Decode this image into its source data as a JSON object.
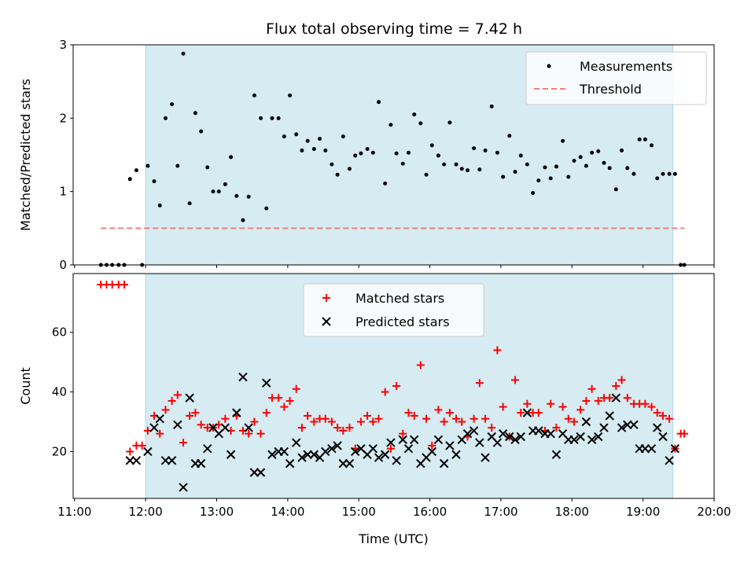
{
  "figure": {
    "title": "Flux total observing time = 7.42 h",
    "xlabel": "Time (UTC)"
  },
  "colors": {
    "shade": "#add8e6",
    "threshold": "#f08080",
    "matched": "#ff0000",
    "predicted": "#000000",
    "measurements": "#000000"
  },
  "chart_data": [
    {
      "type": "scatter",
      "panel": "top",
      "ylabel": "Matched/Predicted stars",
      "ylim": [
        0,
        3
      ],
      "yticks": [
        0,
        1,
        2,
        3
      ],
      "xlim": [
        10.98,
        20.0
      ],
      "xticks": [
        11,
        12,
        13,
        14,
        15,
        16,
        17,
        18,
        19,
        20
      ],
      "xticklabels": [
        "11:00",
        "12:00",
        "13:00",
        "14:00",
        "15:00",
        "16:00",
        "17:00",
        "18:00",
        "19:00",
        "20:00"
      ],
      "legend_position": "top-right",
      "shaded_span": [
        12.0,
        19.42
      ],
      "threshold": {
        "name": "Threshold",
        "y": 0.5,
        "x": [
          11.37,
          19.58
        ],
        "style": "dashed"
      },
      "series": [
        {
          "name": "Measurements",
          "x": [
            11.37,
            11.45,
            11.53,
            11.62,
            11.7,
            11.78,
            11.87,
            11.95,
            12.03,
            12.12,
            12.2,
            12.28,
            12.37,
            12.45,
            12.53,
            12.62,
            12.7,
            12.78,
            12.87,
            12.95,
            13.03,
            13.12,
            13.2,
            13.28,
            13.37,
            13.45,
            13.53,
            13.62,
            13.7,
            13.78,
            13.87,
            13.95,
            14.03,
            14.12,
            14.2,
            14.28,
            14.37,
            14.45,
            14.53,
            14.62,
            14.7,
            14.78,
            14.87,
            14.95,
            15.03,
            15.12,
            15.2,
            15.28,
            15.37,
            15.45,
            15.53,
            15.62,
            15.7,
            15.78,
            15.87,
            15.95,
            16.03,
            16.12,
            16.2,
            16.28,
            16.37,
            16.45,
            16.53,
            16.62,
            16.7,
            16.78,
            16.87,
            16.95,
            17.03,
            17.12,
            17.2,
            17.28,
            17.37,
            17.45,
            17.53,
            17.62,
            17.7,
            17.78,
            17.87,
            17.95,
            18.03,
            18.12,
            18.2,
            18.28,
            18.37,
            18.45,
            18.53,
            18.62,
            18.7,
            18.78,
            18.87,
            18.95,
            19.03,
            19.12,
            19.2,
            19.28,
            19.37,
            19.45,
            19.53,
            19.58
          ],
          "y": [
            0,
            0,
            0,
            0,
            0,
            1.17,
            1.29,
            0,
            1.35,
            1.14,
            0.81,
            2.0,
            2.19,
            1.35,
            2.88,
            0.84,
            2.07,
            1.82,
            1.33,
            1.0,
            1.0,
            1.1,
            1.47,
            0.94,
            0.61,
            0.93,
            2.31,
            2.0,
            0.77,
            2.0,
            2.0,
            1.75,
            2.31,
            1.78,
            1.56,
            1.69,
            1.58,
            1.72,
            1.56,
            1.37,
            1.23,
            1.75,
            1.31,
            1.49,
            1.52,
            1.58,
            1.53,
            2.22,
            1.11,
            1.91,
            1.52,
            1.38,
            1.53,
            2.05,
            1.93,
            1.23,
            1.63,
            1.49,
            1.37,
            1.94,
            1.37,
            1.31,
            1.29,
            1.59,
            1.3,
            1.56,
            2.16,
            1.53,
            1.2,
            1.76,
            1.27,
            1.49,
            1.37,
            0.98,
            1.15,
            1.33,
            1.18,
            1.34,
            1.69,
            1.2,
            1.42,
            1.47,
            1.35,
            1.53,
            1.55,
            1.39,
            1.32,
            1.03,
            1.56,
            1.32,
            1.24,
            1.71,
            1.71,
            1.63,
            1.18,
            1.24,
            1.24,
            1.24,
            0,
            0
          ]
        }
      ]
    },
    {
      "type": "scatter",
      "panel": "bottom",
      "ylabel": "Count",
      "ylim": [
        4.3,
        79.7
      ],
      "yticks": [
        20,
        40,
        60
      ],
      "xlim": [
        10.98,
        20.0
      ],
      "xticks": [
        11,
        12,
        13,
        14,
        15,
        16,
        17,
        18,
        19,
        20
      ],
      "xticklabels": [
        "11:00",
        "12:00",
        "13:00",
        "14:00",
        "15:00",
        "16:00",
        "17:00",
        "18:00",
        "19:00",
        "20:00"
      ],
      "legend_position": "upper center",
      "shaded_span": [
        12.0,
        19.42
      ],
      "series": [
        {
          "name": "Matched stars",
          "marker": "+",
          "x": [
            11.37,
            11.45,
            11.53,
            11.62,
            11.7,
            11.78,
            11.87,
            11.95,
            12.03,
            12.12,
            12.2,
            12.28,
            12.37,
            12.45,
            12.53,
            12.62,
            12.7,
            12.78,
            12.87,
            12.95,
            13.03,
            13.12,
            13.2,
            13.28,
            13.37,
            13.45,
            13.53,
            13.62,
            13.7,
            13.78,
            13.87,
            13.95,
            14.03,
            14.12,
            14.2,
            14.28,
            14.37,
            14.45,
            14.53,
            14.62,
            14.7,
            14.78,
            14.87,
            14.95,
            15.03,
            15.12,
            15.2,
            15.28,
            15.37,
            15.45,
            15.53,
            15.62,
            15.7,
            15.78,
            15.87,
            15.95,
            16.03,
            16.12,
            16.2,
            16.28,
            16.37,
            16.45,
            16.53,
            16.62,
            16.7,
            16.78,
            16.87,
            16.95,
            17.03,
            17.12,
            17.2,
            17.28,
            17.37,
            17.45,
            17.53,
            17.62,
            17.7,
            17.78,
            17.87,
            17.95,
            18.03,
            18.12,
            18.2,
            18.28,
            18.37,
            18.45,
            18.53,
            18.62,
            18.7,
            18.78,
            18.87,
            18.95,
            19.03,
            19.12,
            19.2,
            19.28,
            19.37,
            19.45,
            19.53,
            19.58
          ],
          "y": [
            76,
            76,
            76,
            76,
            76,
            20,
            22,
            22,
            27,
            32,
            26,
            34,
            37,
            39,
            23,
            32,
            33,
            29,
            28,
            28,
            29,
            31,
            27,
            32,
            27,
            26,
            30,
            26,
            33,
            38,
            38,
            35,
            37,
            41,
            28,
            32,
            30,
            31,
            31,
            30,
            28,
            27,
            28,
            21,
            30,
            32,
            30,
            31,
            40,
            21,
            42,
            26,
            33,
            32,
            49,
            31,
            22,
            34,
            30,
            33,
            31,
            30,
            25,
            31,
            43,
            31,
            28,
            54,
            35,
            25,
            44,
            33,
            36,
            33,
            33,
            27,
            36,
            28,
            35,
            31,
            30,
            34,
            37,
            41,
            37,
            38,
            38,
            42,
            44,
            38,
            36,
            36,
            36,
            35,
            33,
            32,
            31,
            21,
            26,
            26
          ]
        },
        {
          "name": "Predicted stars",
          "marker": "x",
          "x": [
            11.78,
            11.87,
            12.03,
            12.12,
            12.2,
            12.28,
            12.37,
            12.45,
            12.53,
            12.62,
            12.7,
            12.78,
            12.87,
            12.95,
            13.03,
            13.12,
            13.2,
            13.28,
            13.37,
            13.45,
            13.53,
            13.62,
            13.7,
            13.78,
            13.87,
            13.95,
            14.03,
            14.12,
            14.2,
            14.28,
            14.37,
            14.45,
            14.53,
            14.62,
            14.7,
            14.78,
            14.87,
            14.95,
            15.03,
            15.12,
            15.2,
            15.28,
            15.37,
            15.45,
            15.53,
            15.62,
            15.7,
            15.78,
            15.87,
            15.95,
            16.03,
            16.12,
            16.2,
            16.28,
            16.37,
            16.45,
            16.53,
            16.62,
            16.7,
            16.78,
            16.87,
            16.95,
            17.03,
            17.12,
            17.2,
            17.28,
            17.37,
            17.45,
            17.53,
            17.62,
            17.7,
            17.78,
            17.87,
            17.95,
            18.03,
            18.12,
            18.2,
            18.28,
            18.37,
            18.45,
            18.53,
            18.62,
            18.7,
            18.78,
            18.87,
            18.95,
            19.03,
            19.12,
            19.2,
            19.28,
            19.37,
            19.45
          ],
          "y": [
            17,
            17,
            20,
            28,
            31,
            17,
            17,
            29,
            8,
            38,
            16,
            16,
            21,
            28,
            26,
            28,
            19,
            33,
            45,
            28,
            13,
            13,
            43,
            19,
            20,
            20,
            16,
            23,
            18,
            19,
            19,
            18,
            20,
            21,
            22,
            16,
            16,
            20,
            21,
            19,
            21,
            18,
            19,
            23,
            17,
            24,
            21,
            24,
            16,
            18,
            20,
            24,
            16,
            22,
            19,
            24,
            26,
            27,
            23,
            18,
            25,
            23,
            26,
            25,
            24,
            25,
            33,
            27,
            27,
            26,
            26,
            19,
            26,
            24,
            24,
            25,
            30,
            24,
            25,
            28,
            32,
            38,
            28,
            29,
            29,
            21,
            21,
            21,
            28,
            25,
            17,
            21
          ]
        }
      ]
    }
  ]
}
